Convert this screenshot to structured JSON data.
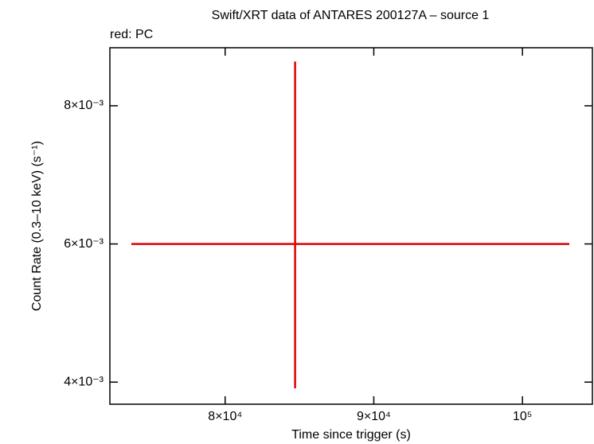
{
  "chart_data": {
    "type": "errorbar",
    "title": "Swift/XRT data of ANTARES 200127A – source 1",
    "subtitle": "red: PC",
    "x_label": "Time since trigger (s)",
    "y_label": "Count Rate (0.3–10 keV) (s⁻¹)",
    "xlim": [
      72246,
      104706
    ],
    "ylim": [
      0.00368,
      0.00884
    ],
    "xticks": [
      {
        "value": 80000,
        "label": "8×10⁴"
      },
      {
        "value": 90000,
        "label": "9×10⁴"
      },
      {
        "value": 100000,
        "label": "10⁵"
      }
    ],
    "yticks": [
      {
        "value": 0.004,
        "label": "4×10⁻³"
      },
      {
        "value": 0.006,
        "label": "6×10⁻³"
      },
      {
        "value": 0.008,
        "label": "8×10⁻³"
      }
    ],
    "series": [
      {
        "name": "PC",
        "color": "#e00000",
        "x": [
          84706
        ],
        "xerr_minus": [
          11016
        ],
        "xerr_plus": [
          18449
        ],
        "values": [
          0.006
        ],
        "yerr_minus": [
          0.00209
        ],
        "yerr_plus": [
          0.00264
        ]
      }
    ]
  }
}
